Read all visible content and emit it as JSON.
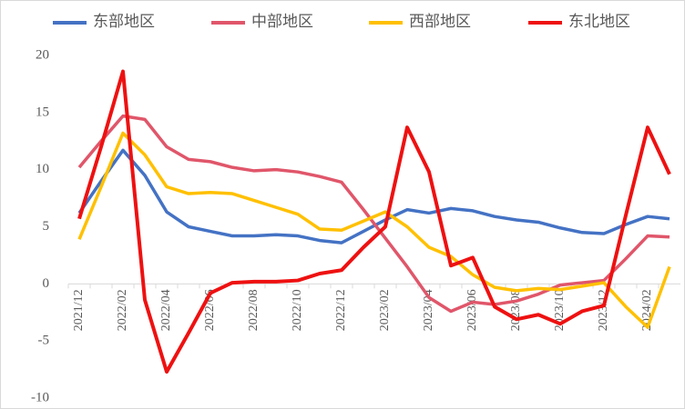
{
  "chart_data": {
    "type": "line",
    "categories": [
      "2021/12",
      null,
      "2022/02",
      null,
      "2022/04",
      null,
      "2022/06",
      null,
      "2022/08",
      null,
      "2022/10",
      null,
      "2022/12",
      null,
      "2023/02",
      null,
      "2023/04",
      null,
      "2023/06",
      null,
      "2023/08",
      null,
      "2023/10",
      null,
      "2023/12",
      null,
      "2024/02",
      null
    ],
    "series": [
      {
        "name": "东部地区",
        "color": "#4472c4",
        "values": [
          6.2,
          9,
          11.7,
          9.5,
          6.3,
          5.0,
          4.6,
          4.2,
          4.2,
          4.3,
          4.2,
          3.8,
          3.6,
          4.6,
          5.6,
          6.5,
          6.2,
          6.6,
          6.4,
          5.9,
          5.6,
          5.4,
          4.9,
          4.5,
          4.4,
          5.2,
          5.9,
          5.7
        ]
      },
      {
        "name": "中部地区",
        "color": "#e0566a",
        "values": [
          10.2,
          12.5,
          14.7,
          14.4,
          12.0,
          10.9,
          10.7,
          10.2,
          9.9,
          10.0,
          9.8,
          9.4,
          8.9,
          6.5,
          4.0,
          1.5,
          -1.2,
          -2.4,
          -1.6,
          -1.8,
          -1.5,
          -0.9,
          -0.1,
          0.1,
          0.3,
          2.2,
          4.2,
          4.1
        ]
      },
      {
        "name": "西部地区",
        "color": "#ffc000",
        "values": [
          3.9,
          8.5,
          13.2,
          11.3,
          8.5,
          7.9,
          8.0,
          7.9,
          7.3,
          6.7,
          6.1,
          4.8,
          4.7,
          5.5,
          6.3,
          5.0,
          3.2,
          2.4,
          0.8,
          -0.3,
          -0.6,
          -0.4,
          -0.5,
          -0.2,
          0.1,
          -2.0,
          -3.8,
          1.5
        ]
      },
      {
        "name": "东北地区",
        "color": "#ee1111",
        "values": [
          5.7,
          12.0,
          18.6,
          -1.4,
          -7.7,
          -4.3,
          -0.8,
          0.1,
          0.2,
          0.2,
          0.3,
          0.9,
          1.2,
          3.2,
          5.0,
          13.7,
          9.8,
          1.6,
          2.3,
          -2.0,
          -3.1,
          -2.7,
          -3.5,
          -2.4,
          -1.9,
          6.0,
          13.7,
          9.6
        ]
      }
    ],
    "ylim": [
      -10,
      20
    ],
    "yticks": [
      -10,
      -5,
      0,
      5,
      10,
      15,
      20
    ]
  }
}
